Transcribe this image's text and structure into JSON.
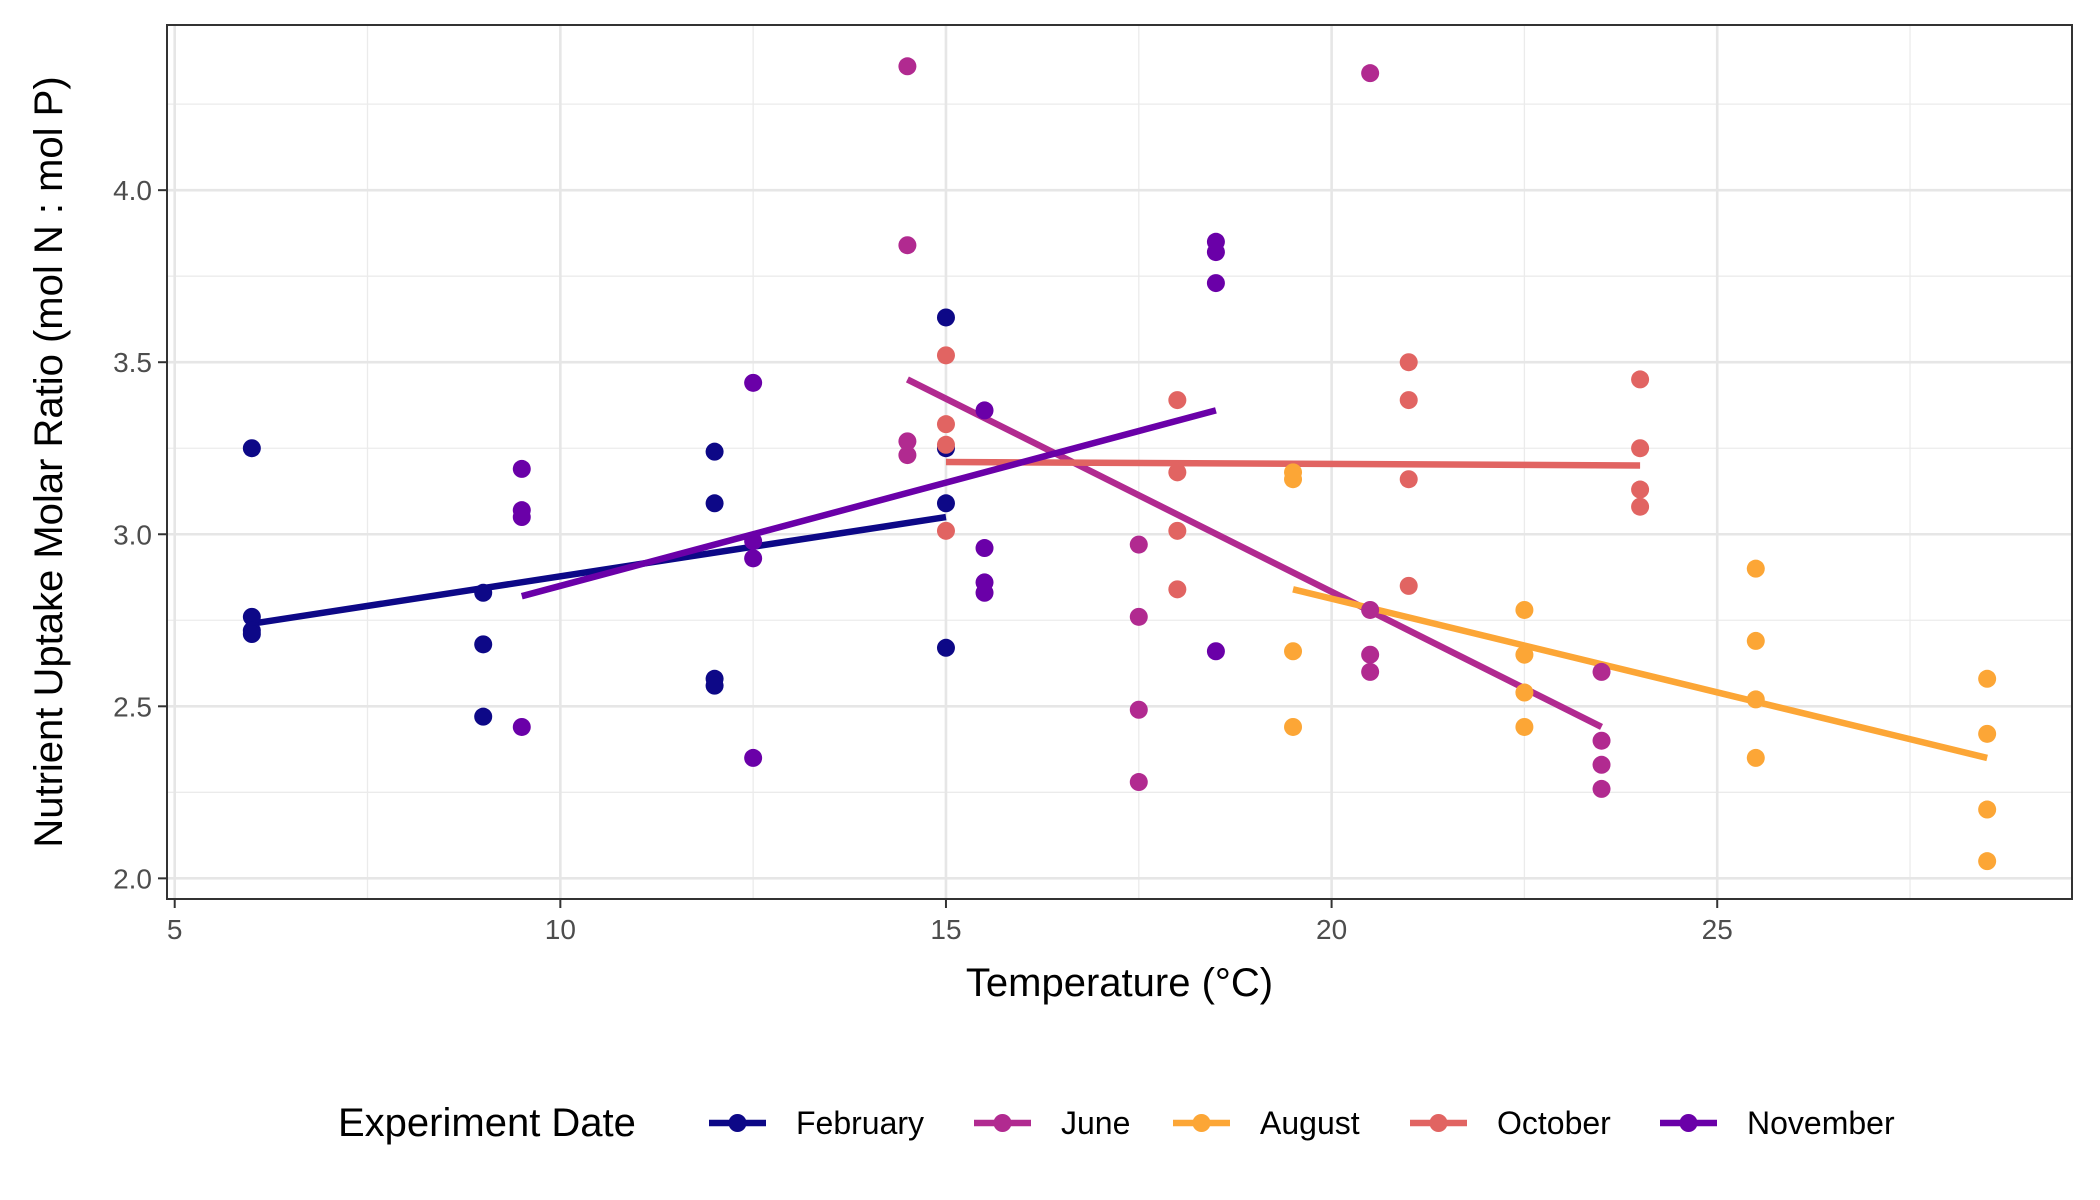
{
  "chart_data": {
    "type": "scatter",
    "title": "",
    "xlabel": "Temperature (°C)",
    "ylabel": "Nutrient Uptake Molar Ratio (mol N : mol P)",
    "xlim": [
      4.9,
      29.6
    ],
    "ylim": [
      1.94,
      4.48
    ],
    "x_ticks": [
      5,
      10,
      15,
      20,
      25
    ],
    "y_ticks": [
      2.0,
      2.5,
      3.0,
      3.5,
      4.0
    ],
    "x_tick_labels": [
      "5",
      "10",
      "15",
      "20",
      "25"
    ],
    "y_tick_labels": [
      "2.0",
      "2.5",
      "3.0",
      "3.5",
      "4.0"
    ],
    "grid": true,
    "legend": {
      "title": "Experiment Date",
      "position": "bottom"
    },
    "series": [
      {
        "name": "February",
        "color": "#0d0887",
        "points": [
          [
            6,
            3.25
          ],
          [
            6,
            2.76
          ],
          [
            6,
            2.72
          ],
          [
            6,
            2.71
          ],
          [
            9,
            2.83
          ],
          [
            9,
            2.68
          ],
          [
            9,
            2.47
          ],
          [
            12,
            3.24
          ],
          [
            12,
            3.09
          ],
          [
            12,
            2.58
          ],
          [
            12,
            2.56
          ],
          [
            15,
            3.63
          ],
          [
            15,
            3.25
          ],
          [
            15,
            3.09
          ],
          [
            15,
            2.67
          ]
        ],
        "fit": [
          [
            6,
            2.74
          ],
          [
            15,
            3.05
          ]
        ]
      },
      {
        "name": "June",
        "color": "#b12a90",
        "points": [
          [
            14.5,
            4.36
          ],
          [
            14.5,
            3.84
          ],
          [
            14.5,
            3.27
          ],
          [
            14.5,
            3.23
          ],
          [
            17.5,
            2.97
          ],
          [
            17.5,
            2.76
          ],
          [
            17.5,
            2.49
          ],
          [
            17.5,
            2.28
          ],
          [
            20.5,
            4.34
          ],
          [
            20.5,
            2.78
          ],
          [
            20.5,
            2.65
          ],
          [
            20.5,
            2.6
          ],
          [
            23.5,
            2.6
          ],
          [
            23.5,
            2.4
          ],
          [
            23.5,
            2.33
          ],
          [
            23.5,
            2.26
          ]
        ],
        "fit": [
          [
            14.5,
            3.45
          ],
          [
            23.5,
            2.44
          ]
        ]
      },
      {
        "name": "August",
        "color": "#fca636",
        "points": [
          [
            19.5,
            3.18
          ],
          [
            19.5,
            3.16
          ],
          [
            19.5,
            2.66
          ],
          [
            19.5,
            2.44
          ],
          [
            22.5,
            2.78
          ],
          [
            22.5,
            2.65
          ],
          [
            22.5,
            2.54
          ],
          [
            22.5,
            2.44
          ],
          [
            25.5,
            2.9
          ],
          [
            25.5,
            2.69
          ],
          [
            25.5,
            2.52
          ],
          [
            25.5,
            2.35
          ],
          [
            28.5,
            2.58
          ],
          [
            28.5,
            2.42
          ],
          [
            28.5,
            2.2
          ],
          [
            28.5,
            2.05
          ]
        ],
        "fit": [
          [
            19.5,
            2.84
          ],
          [
            28.5,
            2.35
          ]
        ]
      },
      {
        "name": "October",
        "color": "#e16462",
        "points": [
          [
            15,
            3.52
          ],
          [
            15,
            3.32
          ],
          [
            15,
            3.26
          ],
          [
            15,
            3.01
          ],
          [
            18,
            3.39
          ],
          [
            18,
            3.18
          ],
          [
            18,
            3.01
          ],
          [
            18,
            2.84
          ],
          [
            21,
            3.5
          ],
          [
            21,
            3.39
          ],
          [
            21,
            3.16
          ],
          [
            21,
            2.85
          ],
          [
            24,
            3.45
          ],
          [
            24,
            3.25
          ],
          [
            24,
            3.13
          ],
          [
            24,
            3.08
          ]
        ],
        "fit": [
          [
            15,
            3.21
          ],
          [
            24,
            3.2
          ]
        ]
      },
      {
        "name": "November",
        "color": "#6a00a8",
        "points": [
          [
            9.5,
            3.19
          ],
          [
            9.5,
            3.07
          ],
          [
            9.5,
            3.05
          ],
          [
            9.5,
            2.44
          ],
          [
            12.5,
            3.44
          ],
          [
            12.5,
            2.98
          ],
          [
            12.5,
            2.93
          ],
          [
            12.5,
            2.35
          ],
          [
            15.5,
            3.36
          ],
          [
            15.5,
            2.96
          ],
          [
            15.5,
            2.86
          ],
          [
            15.5,
            2.83
          ],
          [
            18.5,
            3.85
          ],
          [
            18.5,
            3.82
          ],
          [
            18.5,
            3.73
          ],
          [
            18.5,
            2.66
          ]
        ],
        "fit": [
          [
            9.5,
            2.82
          ],
          [
            18.5,
            3.36
          ]
        ]
      }
    ]
  }
}
